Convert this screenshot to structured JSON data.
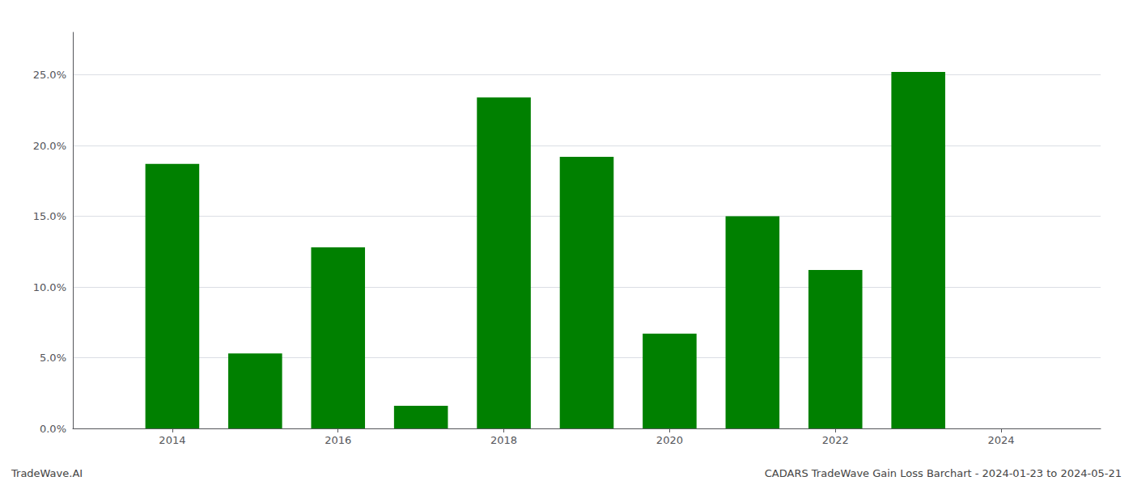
{
  "chart_data": {
    "type": "bar",
    "x": [
      2014,
      2015,
      2016,
      2017,
      2018,
      2019,
      2020,
      2021,
      2022,
      2023
    ],
    "values": [
      0.187,
      0.053,
      0.128,
      0.016,
      0.234,
      0.192,
      0.067,
      0.15,
      0.112,
      0.252
    ],
    "color": "#008000",
    "xlim": [
      2012.8,
      2025.2
    ],
    "xticks": [
      2014,
      2016,
      2018,
      2020,
      2022,
      2024
    ],
    "ylim": [
      0,
      0.28
    ],
    "yticks": [
      {
        "value": 0.0,
        "label": "0.0%"
      },
      {
        "value": 0.05,
        "label": "5.0%"
      },
      {
        "value": 0.1,
        "label": "10.0%"
      },
      {
        "value": 0.15,
        "label": "15.0%"
      },
      {
        "value": 0.2,
        "label": "20.0%"
      },
      {
        "value": 0.25,
        "label": "25.0%"
      }
    ],
    "grid": true,
    "annotations": [
      "TradeWave.AI",
      "CADARS TradeWave Gain Loss Barchart - 2024-01-23 to 2024-05-21"
    ]
  }
}
